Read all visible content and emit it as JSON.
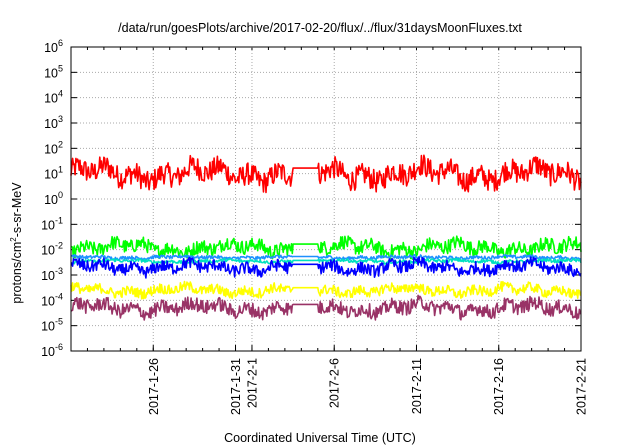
{
  "chart_data": {
    "type": "line",
    "title": "/data/run/goesPlots/archive/2017-02-20/flux/../flux/31daysMoonFluxes.txt",
    "xlabel": "Coordinated Universal Time (UTC)",
    "ylabel": "protons/cm2-s-sr-MeV",
    "ylabel_parts": {
      "base": "protons/cm",
      "sup": "2",
      "rest": "-s-sr-MeV"
    },
    "yscale": "log",
    "ylim": [
      1e-06,
      1000000.0
    ],
    "ytick_labels": [
      {
        "base": "10",
        "exp": "-6",
        "value": 1e-06
      },
      {
        "base": "10",
        "exp": "-5",
        "value": 1e-05
      },
      {
        "base": "10",
        "exp": "-4",
        "value": 0.0001
      },
      {
        "base": "10",
        "exp": "-3",
        "value": 0.001
      },
      {
        "base": "10",
        "exp": "-2",
        "value": 0.01
      },
      {
        "base": "10",
        "exp": "-1",
        "value": 0.1
      },
      {
        "base": "10",
        "exp": "0",
        "value": 1
      },
      {
        "base": "10",
        "exp": "1",
        "value": 10
      },
      {
        "base": "10",
        "exp": "2",
        "value": 100
      },
      {
        "base": "10",
        "exp": "3",
        "value": 1000
      },
      {
        "base": "10",
        "exp": "4",
        "value": 10000
      },
      {
        "base": "10",
        "exp": "5",
        "value": 100000
      },
      {
        "base": "10",
        "exp": "6",
        "value": 1000000
      }
    ],
    "xlim": [
      "2017-01-21",
      "2017-02-21"
    ],
    "xtick_labels": [
      "2017-1-26",
      "2017-1-31",
      "2017-2-1",
      "2017-2-6",
      "2017-2-11",
      "2017-2-16",
      "2017-2-21"
    ],
    "xtick_dates": [
      "2017-01-26",
      "2017-01-31",
      "2017-02-01",
      "2017-02-06",
      "2017-02-11",
      "2017-02-16",
      "2017-02-21"
    ],
    "grid": true,
    "legend": "none",
    "series": [
      {
        "color": "#ff0000",
        "level": 10,
        "spread_decades": 0.55
      },
      {
        "color": "#00ff00",
        "level": 0.012,
        "spread_decades": 0.35
      },
      {
        "color": "#1e90ff",
        "level": 0.005,
        "spread_decades": 0.08
      },
      {
        "color": "#00e0c0",
        "level": 0.0035,
        "spread_decades": 0.08
      },
      {
        "color": "#0000ff",
        "level": 0.002,
        "spread_decades": 0.3
      },
      {
        "color": "#ffff00",
        "level": 0.00025,
        "spread_decades": 0.25
      },
      {
        "color": "#993366",
        "level": 5e-05,
        "spread_decades": 0.35
      }
    ],
    "gap": [
      "2017-02-03",
      "2017-02-05"
    ]
  }
}
